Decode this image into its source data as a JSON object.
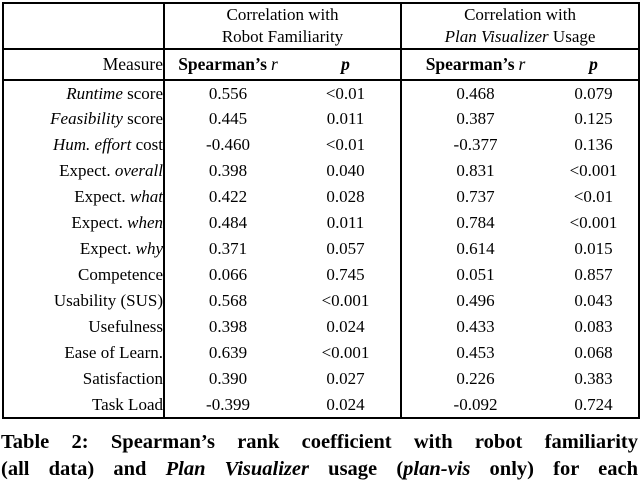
{
  "page": {
    "background_color": "#ffffff",
    "text_color": "#000000",
    "border_color": "#000000"
  },
  "table": {
    "corner_label": "",
    "measure_header": "Measure",
    "spearman_label": "Spearman’s",
    "r_symbol": "r",
    "p_symbol": "p",
    "groups": [
      {
        "line1": "Correlation with",
        "line2_parts": [
          {
            "text": "Robot Familiarity",
            "italic": false
          }
        ]
      },
      {
        "line1": "Correlation with",
        "line2_parts": [
          {
            "text": "Plan Visualizer",
            "italic": true
          },
          {
            "text": " Usage",
            "italic": false
          }
        ]
      }
    ],
    "rows": [
      {
        "measure": [
          {
            "text": "Runtime",
            "italic": true
          },
          {
            "text": " score",
            "italic": false
          }
        ],
        "r1": {
          "v": "0.556",
          "bold": true
        },
        "p1": {
          "v": "<0.01",
          "bold": true
        },
        "r2": {
          "v": "0.468",
          "bold": false
        },
        "p2": {
          "v": "0.079",
          "bold": false
        }
      },
      {
        "measure": [
          {
            "text": "Feasibility",
            "italic": true
          },
          {
            "text": " score",
            "italic": false
          }
        ],
        "r1": {
          "v": "0.445",
          "bold": true
        },
        "p1": {
          "v": "0.011",
          "bold": true
        },
        "r2": {
          "v": "0.387",
          "bold": false
        },
        "p2": {
          "v": "0.125",
          "bold": false
        }
      },
      {
        "measure": [
          {
            "text": "Hum. effort",
            "italic": true
          },
          {
            "text": " cost",
            "italic": false
          }
        ],
        "r1": {
          "v": "-0.460",
          "bold": true
        },
        "p1": {
          "v": "<0.01",
          "bold": true
        },
        "r2": {
          "v": "-0.377",
          "bold": false
        },
        "p2": {
          "v": "0.136",
          "bold": false
        }
      },
      {
        "measure": [
          {
            "text": "Expect. ",
            "italic": false
          },
          {
            "text": "overall",
            "italic": true
          }
        ],
        "r1": {
          "v": "0.398",
          "bold": true
        },
        "p1": {
          "v": "0.040",
          "bold": true
        },
        "r2": {
          "v": "0.831",
          "bold": true
        },
        "p2": {
          "v": "<0.001",
          "bold": true
        }
      },
      {
        "measure": [
          {
            "text": "Expect. ",
            "italic": false
          },
          {
            "text": "what",
            "italic": true
          }
        ],
        "r1": {
          "v": "0.422",
          "bold": true
        },
        "p1": {
          "v": "0.028",
          "bold": true
        },
        "r2": {
          "v": "0.737",
          "bold": true
        },
        "p2": {
          "v": "<0.01",
          "bold": true
        }
      },
      {
        "measure": [
          {
            "text": "Expect. ",
            "italic": false
          },
          {
            "text": "when",
            "italic": true
          }
        ],
        "r1": {
          "v": "0.484",
          "bold": true
        },
        "p1": {
          "v": "0.011",
          "bold": true
        },
        "r2": {
          "v": "0.784",
          "bold": true
        },
        "p2": {
          "v": "<0.001",
          "bold": true
        }
      },
      {
        "measure": [
          {
            "text": "Expect. ",
            "italic": false
          },
          {
            "text": "why",
            "italic": true
          }
        ],
        "r1": {
          "v": "0.371",
          "bold": false
        },
        "p1": {
          "v": "0.057",
          "bold": false
        },
        "r2": {
          "v": "0.614",
          "bold": true
        },
        "p2": {
          "v": "0.015",
          "bold": true
        }
      },
      {
        "measure": [
          {
            "text": "Competence",
            "italic": false
          }
        ],
        "r1": {
          "v": "0.066",
          "bold": false
        },
        "p1": {
          "v": "0.745",
          "bold": false
        },
        "r2": {
          "v": "0.051",
          "bold": false
        },
        "p2": {
          "v": "0.857",
          "bold": false
        }
      },
      {
        "measure": [
          {
            "text": "Usability (SUS)",
            "italic": false
          }
        ],
        "r1": {
          "v": "0.568",
          "bold": true
        },
        "p1": {
          "v": "<0.001",
          "bold": true
        },
        "r2": {
          "v": "0.496",
          "bold": true
        },
        "p2": {
          "v": "0.043",
          "bold": true
        }
      },
      {
        "measure": [
          {
            "text": "Usefulness",
            "italic": false
          }
        ],
        "r1": {
          "v": "0.398",
          "bold": true
        },
        "p1": {
          "v": "0.024",
          "bold": true
        },
        "r2": {
          "v": "0.433",
          "bold": false
        },
        "p2": {
          "v": "0.083",
          "bold": false
        }
      },
      {
        "measure": [
          {
            "text": "Ease of Learn.",
            "italic": false
          }
        ],
        "r1": {
          "v": "0.639",
          "bold": true
        },
        "p1": {
          "v": "<0.001",
          "bold": true
        },
        "r2": {
          "v": "0.453",
          "bold": false
        },
        "p2": {
          "v": "0.068",
          "bold": false
        }
      },
      {
        "measure": [
          {
            "text": "Satisfaction",
            "italic": false
          }
        ],
        "r1": {
          "v": "0.390",
          "bold": true
        },
        "p1": {
          "v": "0.027",
          "bold": true
        },
        "r2": {
          "v": "0.226",
          "bold": false
        },
        "p2": {
          "v": "0.383",
          "bold": false
        }
      },
      {
        "measure": [
          {
            "text": "Task Load",
            "italic": false
          }
        ],
        "r1": {
          "v": "-0.399",
          "bold": true
        },
        "p1": {
          "v": "0.024",
          "bold": true
        },
        "r2": {
          "v": "-0.092",
          "bold": false
        },
        "p2": {
          "v": "0.724",
          "bold": false
        }
      }
    ]
  },
  "caption": {
    "lines": [
      [
        {
          "text": "Table 2: Spearman’s rank coefficient with robot familiarity",
          "italic": false
        }
      ],
      [
        {
          "text": "(all data) and ",
          "italic": false
        },
        {
          "text": "Plan Visualizer",
          "italic": true
        },
        {
          "text": " usage (",
          "italic": false
        },
        {
          "text": "plan-vis",
          "italic": true
        },
        {
          "text": " only) for each",
          "italic": false
        }
      ]
    ]
  }
}
